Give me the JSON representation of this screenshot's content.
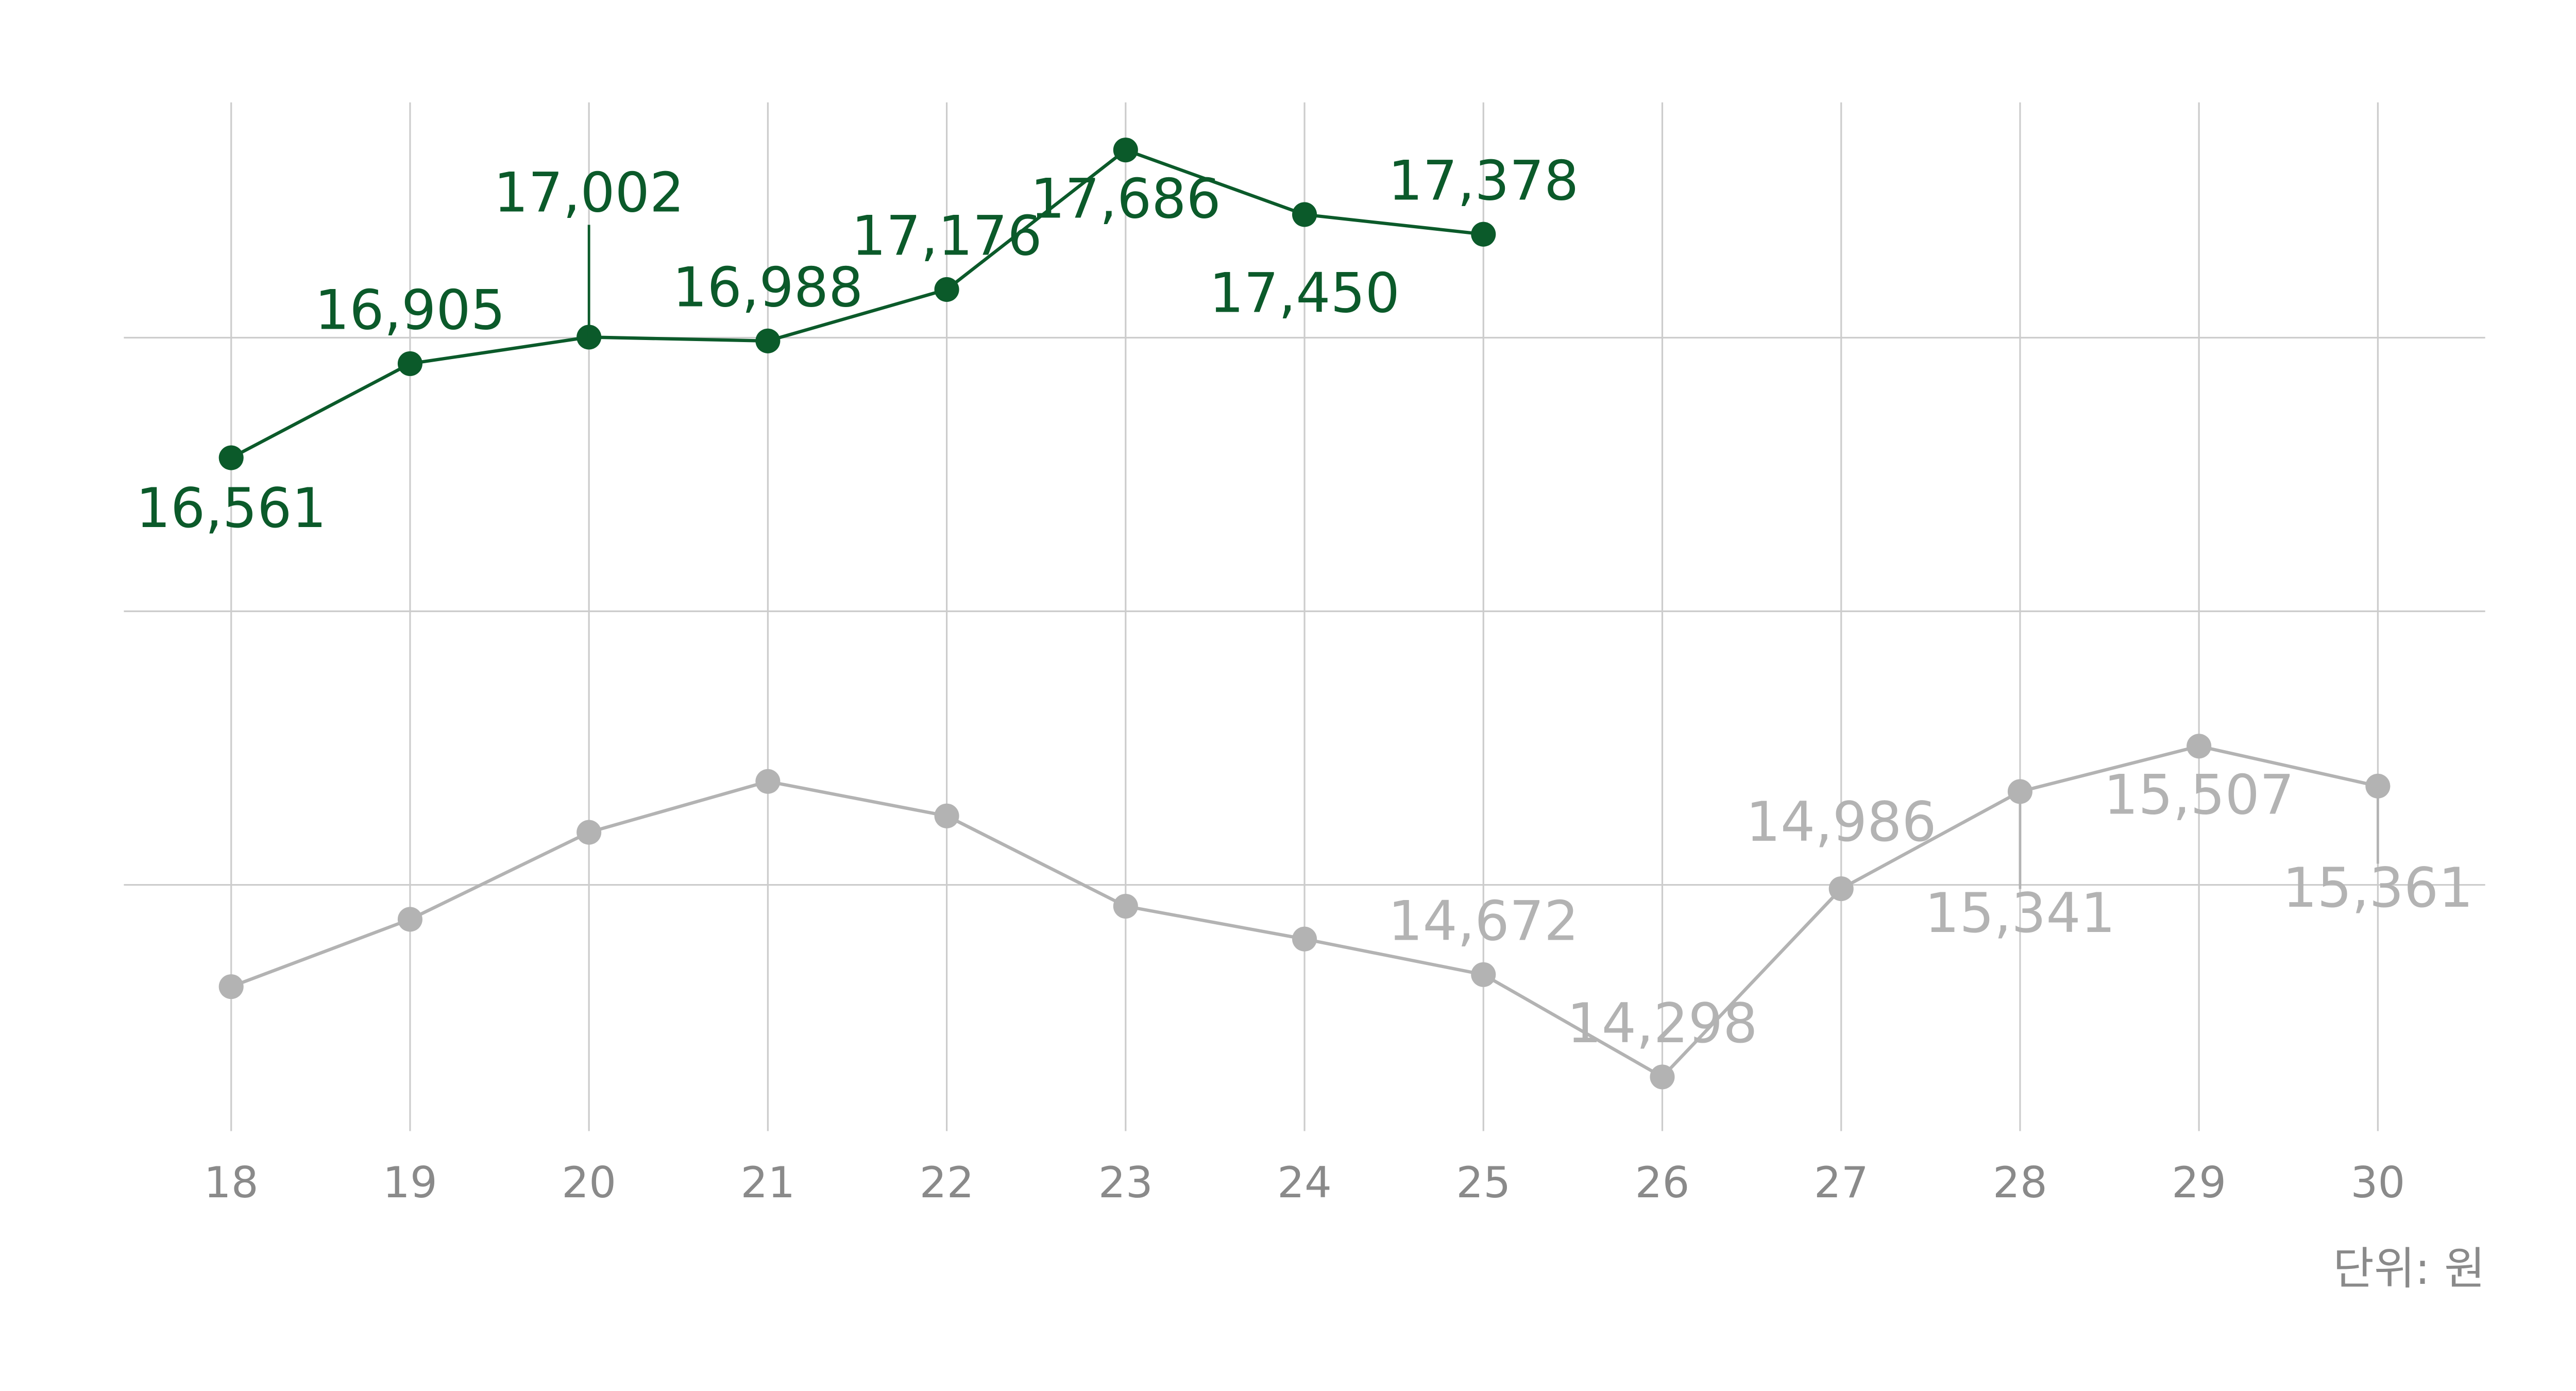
{
  "chart_data": {
    "type": "line",
    "categories": [
      "18",
      "19",
      "20",
      "21",
      "22",
      "23",
      "24",
      "25",
      "26",
      "27",
      "28",
      "29",
      "30"
    ],
    "series": [
      {
        "color": "#0b5a2a",
        "values": [
          16561,
          16905,
          17002,
          16988,
          17176,
          17686,
          17450,
          17378,
          null,
          null,
          null,
          null,
          null
        ],
        "value_labels": [
          "16,561",
          "16,905",
          "17,002",
          "16,988",
          "17,176",
          "17,686",
          "17,450",
          "17,378",
          null,
          null,
          null,
          null,
          null
        ]
      },
      {
        "color": "#b3b3b3",
        "values": [
          14628,
          14874,
          15192,
          15378,
          15252,
          14922,
          14802,
          14672,
          14298,
          14986,
          15341,
          15507,
          15361
        ],
        "value_labels": [
          null,
          null,
          null,
          null,
          null,
          null,
          null,
          "14,672",
          "14,298",
          "14,986",
          "15,341",
          "15,507",
          "15,361"
        ]
      }
    ],
    "ylim": [
      14100,
      17860
    ],
    "yticks": [
      15000,
      16000,
      17000
    ],
    "grid": true,
    "unit_note": "단위: 원"
  }
}
